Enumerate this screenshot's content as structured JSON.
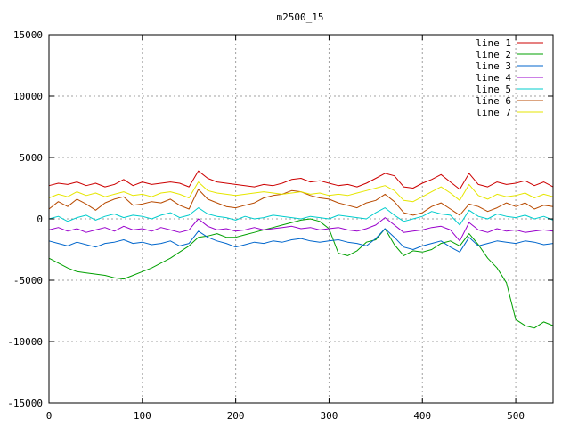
{
  "chart_data": {
    "type": "line",
    "title": "m2500_15",
    "xlabel": "",
    "ylabel": "",
    "xlim": [
      0,
      540
    ],
    "ylim": [
      -15000,
      15000
    ],
    "xticks": [
      0,
      100,
      200,
      300,
      400,
      500
    ],
    "yticks": [
      -15000,
      -10000,
      -5000,
      0,
      5000,
      10000,
      15000
    ],
    "xtick_labels": [
      "0",
      "100",
      "200",
      "300",
      "400",
      "500"
    ],
    "ytick_labels": [
      "-15000",
      "-10000",
      "-5000",
      "0",
      "5000",
      "10000",
      "15000"
    ],
    "grid": true,
    "legend_position": "top-right",
    "series": [
      {
        "name": "line 1",
        "color": "#cc0000",
        "x": [
          0,
          10,
          20,
          30,
          40,
          50,
          60,
          70,
          80,
          90,
          100,
          110,
          120,
          130,
          140,
          150,
          160,
          170,
          180,
          190,
          200,
          210,
          220,
          230,
          240,
          250,
          260,
          270,
          280,
          290,
          300,
          310,
          320,
          330,
          340,
          350,
          360,
          370,
          380,
          390,
          400,
          410,
          420,
          430,
          440,
          450,
          460,
          470,
          480,
          490,
          500,
          510,
          520,
          530,
          540
        ],
        "y": [
          2700,
          2900,
          2800,
          3000,
          2700,
          2900,
          2600,
          2800,
          3200,
          2700,
          3000,
          2800,
          2900,
          3000,
          2900,
          2600,
          3900,
          3300,
          3000,
          2900,
          2800,
          2700,
          2600,
          2800,
          2700,
          2900,
          3200,
          3300,
          3000,
          3100,
          2900,
          2700,
          2800,
          2600,
          2900,
          3300,
          3700,
          3500,
          2600,
          2500,
          2900,
          3200,
          3600,
          3000,
          2400,
          3700,
          2800,
          2600,
          3000,
          2800,
          2900,
          3100,
          2700,
          3000,
          2600
        ]
      },
      {
        "name": "line 2",
        "color": "#00a000",
        "x": [
          0,
          10,
          20,
          30,
          40,
          50,
          60,
          70,
          80,
          90,
          100,
          110,
          120,
          130,
          140,
          150,
          160,
          170,
          180,
          190,
          200,
          210,
          220,
          230,
          240,
          250,
          260,
          270,
          280,
          290,
          300,
          310,
          320,
          330,
          340,
          350,
          360,
          370,
          380,
          390,
          400,
          410,
          420,
          430,
          440,
          450,
          460,
          470,
          480,
          490,
          500,
          510,
          520,
          530,
          540
        ],
        "y": [
          -3200,
          -3600,
          -4000,
          -4300,
          -4400,
          -4500,
          -4600,
          -4800,
          -4900,
          -4600,
          -4300,
          -4000,
          -3600,
          -3200,
          -2700,
          -2200,
          -1500,
          -1400,
          -1200,
          -1500,
          -1500,
          -1300,
          -1100,
          -900,
          -700,
          -500,
          -300,
          -100,
          0,
          -200,
          -800,
          -2800,
          -3000,
          -2600,
          -1900,
          -1700,
          -800,
          -2100,
          -3000,
          -2600,
          -2700,
          -2500,
          -2000,
          -1800,
          -2200,
          -1200,
          -2100,
          -3200,
          -4000,
          -5200,
          -8200,
          -8700,
          -8900,
          -8400,
          -8700
        ]
      },
      {
        "name": "line 3",
        "color": "#0066cc",
        "x": [
          0,
          10,
          20,
          30,
          40,
          50,
          60,
          70,
          80,
          90,
          100,
          110,
          120,
          130,
          140,
          150,
          160,
          170,
          180,
          190,
          200,
          210,
          220,
          230,
          240,
          250,
          260,
          270,
          280,
          290,
          300,
          310,
          320,
          330,
          340,
          350,
          360,
          370,
          380,
          390,
          400,
          410,
          420,
          430,
          440,
          450,
          460,
          470,
          480,
          490,
          500,
          510,
          520,
          530,
          540
        ],
        "y": [
          -1800,
          -2000,
          -2200,
          -1900,
          -2100,
          -2300,
          -2000,
          -1900,
          -1700,
          -2000,
          -1900,
          -2100,
          -2000,
          -1800,
          -2200,
          -2000,
          -1000,
          -1500,
          -1800,
          -2000,
          -2300,
          -2100,
          -1900,
          -2000,
          -1800,
          -1900,
          -1700,
          -1600,
          -1800,
          -1900,
          -1800,
          -1700,
          -1900,
          -2000,
          -2200,
          -1600,
          -800,
          -1500,
          -2300,
          -2500,
          -2200,
          -2000,
          -1800,
          -2300,
          -2700,
          -1500,
          -2200,
          -2000,
          -1800,
          -1900,
          -2000,
          -1800,
          -1900,
          -2100,
          -2000
        ]
      },
      {
        "name": "line 4",
        "color": "#9900cc",
        "x": [
          0,
          10,
          20,
          30,
          40,
          50,
          60,
          70,
          80,
          90,
          100,
          110,
          120,
          130,
          140,
          150,
          160,
          170,
          180,
          190,
          200,
          210,
          220,
          230,
          240,
          250,
          260,
          270,
          280,
          290,
          300,
          310,
          320,
          330,
          340,
          350,
          360,
          370,
          380,
          390,
          400,
          410,
          420,
          430,
          440,
          450,
          460,
          470,
          480,
          490,
          500,
          510,
          520,
          530,
          540
        ],
        "y": [
          -900,
          -700,
          -1000,
          -800,
          -1100,
          -900,
          -700,
          -1000,
          -600,
          -900,
          -800,
          -1000,
          -700,
          -900,
          -1100,
          -900,
          0,
          -600,
          -900,
          -800,
          -1000,
          -900,
          -700,
          -900,
          -800,
          -700,
          -600,
          -800,
          -700,
          -900,
          -800,
          -700,
          -900,
          -1000,
          -800,
          -500,
          100,
          -500,
          -1100,
          -1000,
          -900,
          -700,
          -600,
          -900,
          -1800,
          -300,
          -900,
          -1100,
          -800,
          -1000,
          -900,
          -1100,
          -1000,
          -900,
          -1000
        ]
      },
      {
        "name": "line 5",
        "color": "#00cccc",
        "x": [
          0,
          10,
          20,
          30,
          40,
          50,
          60,
          70,
          80,
          90,
          100,
          110,
          120,
          130,
          140,
          150,
          160,
          170,
          180,
          190,
          200,
          210,
          220,
          230,
          240,
          250,
          260,
          270,
          280,
          290,
          300,
          310,
          320,
          330,
          340,
          350,
          360,
          370,
          380,
          390,
          400,
          410,
          420,
          430,
          440,
          450,
          460,
          470,
          480,
          490,
          500,
          510,
          520,
          530,
          540
        ],
        "y": [
          0,
          200,
          -200,
          100,
          300,
          -100,
          200,
          400,
          100,
          300,
          200,
          0,
          300,
          500,
          100,
          300,
          900,
          400,
          200,
          100,
          -100,
          200,
          0,
          100,
          300,
          200,
          100,
          0,
          200,
          100,
          0,
          300,
          200,
          100,
          0,
          500,
          900,
          300,
          -200,
          0,
          200,
          600,
          400,
          300,
          -500,
          700,
          200,
          0,
          400,
          200,
          100,
          300,
          0,
          200,
          -100
        ]
      },
      {
        "name": "line 6",
        "color": "#b84a00",
        "x": [
          0,
          10,
          20,
          30,
          40,
          50,
          60,
          70,
          80,
          90,
          100,
          110,
          120,
          130,
          140,
          150,
          160,
          170,
          180,
          190,
          200,
          210,
          220,
          230,
          240,
          250,
          260,
          270,
          280,
          290,
          300,
          310,
          320,
          330,
          340,
          350,
          360,
          370,
          380,
          390,
          400,
          410,
          420,
          430,
          440,
          450,
          460,
          470,
          480,
          490,
          500,
          510,
          520,
          530,
          540
        ],
        "y": [
          800,
          1400,
          1000,
          1600,
          1200,
          700,
          1300,
          1600,
          1800,
          1100,
          1200,
          1400,
          1300,
          1600,
          1100,
          800,
          2400,
          1600,
          1300,
          1000,
          900,
          1100,
          1300,
          1700,
          1900,
          2000,
          2300,
          2200,
          1900,
          1700,
          1600,
          1300,
          1100,
          900,
          1300,
          1500,
          2000,
          1400,
          500,
          300,
          500,
          1000,
          1300,
          800,
          300,
          1200,
          1000,
          600,
          900,
          1300,
          1000,
          1300,
          800,
          1100,
          1000
        ]
      },
      {
        "name": "line 7",
        "color": "#e6e600",
        "x": [
          0,
          10,
          20,
          30,
          40,
          50,
          60,
          70,
          80,
          90,
          100,
          110,
          120,
          130,
          140,
          150,
          160,
          170,
          180,
          190,
          200,
          210,
          220,
          230,
          240,
          250,
          260,
          270,
          280,
          290,
          300,
          310,
          320,
          330,
          340,
          350,
          360,
          370,
          380,
          390,
          400,
          410,
          420,
          430,
          440,
          450,
          460,
          470,
          480,
          490,
          500,
          510,
          520,
          530,
          540
        ],
        "y": [
          1700,
          2000,
          1800,
          2200,
          1900,
          2100,
          1800,
          2000,
          2200,
          1900,
          2000,
          1800,
          2100,
          2200,
          2000,
          1700,
          3000,
          2300,
          2100,
          2000,
          1900,
          2000,
          2100,
          2200,
          2100,
          2000,
          2100,
          2200,
          2000,
          2100,
          1900,
          2000,
          1900,
          2100,
          2300,
          2500,
          2700,
          2300,
          1500,
          1400,
          1800,
          2200,
          2600,
          2100,
          1500,
          2800,
          1900,
          1600,
          2000,
          1800,
          1900,
          2100,
          1700,
          2000,
          1800
        ]
      }
    ]
  }
}
